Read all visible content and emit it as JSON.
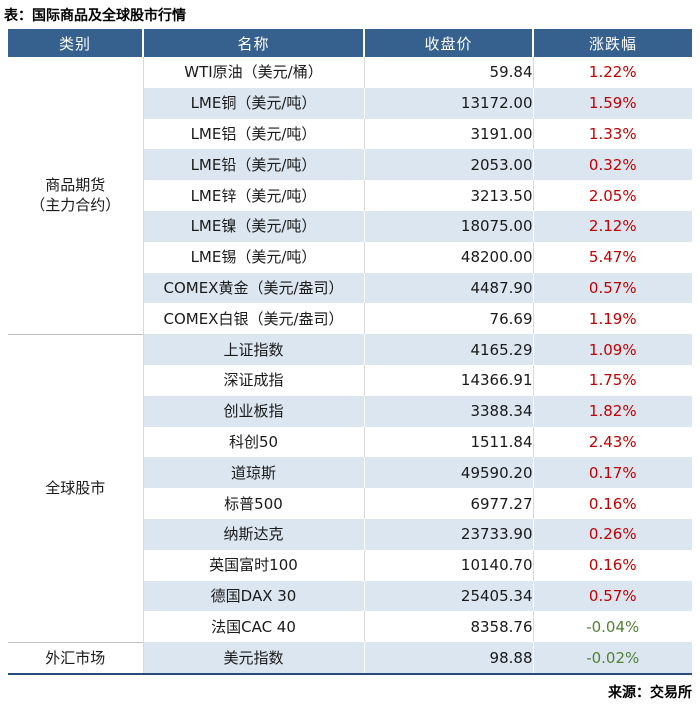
{
  "title": "表：国际商品及全球股市行情",
  "source_note": "来源：交易所",
  "colors": {
    "header_bg": "#36618E",
    "stripe_bg": "#DCE6F1",
    "up_red": "#C00000",
    "down_green": "#538135",
    "bottom_rule": "#2B4A7D"
  },
  "table": {
    "headers": [
      "类别",
      "名称",
      "收盘价",
      "涨跌幅"
    ],
    "sections": [
      {
        "category_lines": [
          "商品期货",
          "（主力合约）"
        ],
        "rows": [
          {
            "name": "WTI原油（美元/桶）",
            "close": "59.84",
            "change": "1.22%"
          },
          {
            "name": "LME铜（美元/吨）",
            "close": "13172.00",
            "change": "1.59%"
          },
          {
            "name": "LME铝（美元/吨）",
            "close": "3191.00",
            "change": "1.33%"
          },
          {
            "name": "LME铅（美元/吨）",
            "close": "2053.00",
            "change": "0.32%"
          },
          {
            "name": "LME锌（美元/吨）",
            "close": "3213.50",
            "change": "2.05%"
          },
          {
            "name": "LME镍（美元/吨）",
            "close": "18075.00",
            "change": "2.12%"
          },
          {
            "name": "LME锡（美元/吨）",
            "close": "48200.00",
            "change": "5.47%"
          },
          {
            "name": "COMEX黄金（美元/盎司）",
            "close": "4487.90",
            "change": "0.57%"
          },
          {
            "name": "COMEX白银（美元/盎司）",
            "close": "76.69",
            "change": "1.19%"
          }
        ]
      },
      {
        "category_lines": [
          "全球股市"
        ],
        "rows": [
          {
            "name": "上证指数",
            "close": "4165.29",
            "change": "1.09%"
          },
          {
            "name": "深证成指",
            "close": "14366.91",
            "change": "1.75%"
          },
          {
            "name": "创业板指",
            "close": "3388.34",
            "change": "1.82%"
          },
          {
            "name": "科创50",
            "close": "1511.84",
            "change": "2.43%"
          },
          {
            "name": "道琼斯",
            "close": "49590.20",
            "change": "0.17%"
          },
          {
            "name": "标普500",
            "close": "6977.27",
            "change": "0.16%"
          },
          {
            "name": "纳斯达克",
            "close": "23733.90",
            "change": "0.26%"
          },
          {
            "name": "英国富时100",
            "close": "10140.70",
            "change": "0.16%"
          },
          {
            "name": "德国DAX 30",
            "close": "25405.34",
            "change": "0.57%"
          },
          {
            "name": "法国CAC 40",
            "close": "8358.76",
            "change": "-0.04%"
          }
        ]
      },
      {
        "category_lines": [
          "外汇市场"
        ],
        "rows": [
          {
            "name": "美元指数",
            "close": "98.88",
            "change": "-0.02%"
          }
        ]
      }
    ]
  },
  "chart_data": {
    "type": "table",
    "title": "国际商品及全球股市行情",
    "columns": [
      "类别",
      "名称",
      "收盘价",
      "涨跌幅"
    ],
    "rows": [
      [
        "商品期货（主力合约）",
        "WTI原油（美元/桶）",
        59.84,
        "1.22%"
      ],
      [
        "商品期货（主力合约）",
        "LME铜（美元/吨）",
        13172.0,
        "1.59%"
      ],
      [
        "商品期货（主力合约）",
        "LME铝（美元/吨）",
        3191.0,
        "1.33%"
      ],
      [
        "商品期货（主力合约）",
        "LME铅（美元/吨）",
        2053.0,
        "0.32%"
      ],
      [
        "商品期货（主力合约）",
        "LME锌（美元/吨）",
        3213.5,
        "2.05%"
      ],
      [
        "商品期货（主力合约）",
        "LME镍（美元/吨）",
        18075.0,
        "2.12%"
      ],
      [
        "商品期货（主力合约）",
        "LME锡（美元/吨）",
        48200.0,
        "5.47%"
      ],
      [
        "商品期货（主力合约）",
        "COMEX黄金（美元/盎司）",
        4487.9,
        "0.57%"
      ],
      [
        "商品期货（主力合约）",
        "COMEX白银（美元/盎司）",
        76.69,
        "1.19%"
      ],
      [
        "全球股市",
        "上证指数",
        4165.29,
        "1.09%"
      ],
      [
        "全球股市",
        "深证成指",
        14366.91,
        "1.75%"
      ],
      [
        "全球股市",
        "创业板指",
        3388.34,
        "1.82%"
      ],
      [
        "全球股市",
        "科创50",
        1511.84,
        "2.43%"
      ],
      [
        "全球股市",
        "道琼斯",
        49590.2,
        "0.17%"
      ],
      [
        "全球股市",
        "标普500",
        6977.27,
        "0.16%"
      ],
      [
        "全球股市",
        "纳斯达克",
        23733.9,
        "0.26%"
      ],
      [
        "全球股市",
        "英国富时100",
        10140.7,
        "0.16%"
      ],
      [
        "全球股市",
        "德国DAX 30",
        25405.34,
        "0.57%"
      ],
      [
        "全球股市",
        "法国CAC 40",
        8358.76,
        "-0.04%"
      ],
      [
        "外汇市场",
        "美元指数",
        98.88,
        "-0.02%"
      ]
    ]
  }
}
